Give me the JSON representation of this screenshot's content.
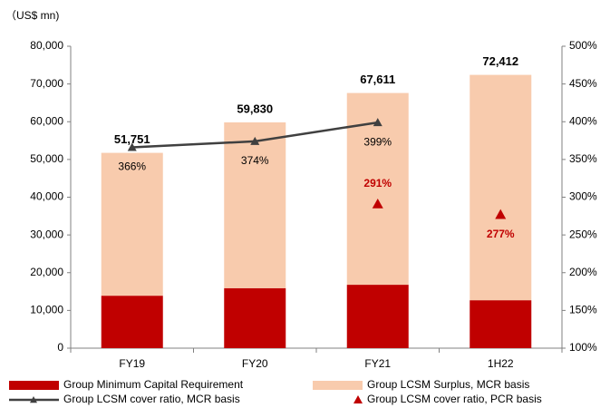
{
  "chart_data": {
    "type": "bar",
    "unit_label": "（US$ mn)",
    "categories": [
      "FY19",
      "FY20",
      "FY21",
      "1H22"
    ],
    "series": [
      {
        "name": "Group Minimum Capital Requirement",
        "type": "bar",
        "color": "#c00000",
        "values": [
          13900,
          15900,
          16800,
          12700
        ]
      },
      {
        "name": "Group LCSM Surplus, MCR basis",
        "type": "bar",
        "color": "#f8cbad",
        "values": [
          37851,
          43930,
          50811,
          59712
        ]
      },
      {
        "name": "Group LCSM cover ratio, MCR basis",
        "type": "line",
        "axis": "y2",
        "color": "#404040",
        "values": [
          366,
          374,
          399,
          null
        ],
        "value_labels": [
          "366%",
          "374%",
          "399%",
          null
        ]
      },
      {
        "name": "Group LCSM cover ratio, PCR basis",
        "type": "scatter",
        "axis": "y2",
        "color": "#c00000",
        "values": [
          null,
          null,
          291,
          277
        ],
        "value_labels": [
          null,
          null,
          "291%",
          "277%"
        ]
      }
    ],
    "totals": [
      51751,
      59830,
      67611,
      72412
    ],
    "total_labels": [
      "51,751",
      "59,830",
      "67,611",
      "72,412"
    ],
    "ylim": [
      0,
      80000
    ],
    "yticks": [
      0,
      {
        "value": 10000,
        "label": "10,000"
      },
      {
        "value": 20000,
        "label": "20,000"
      },
      {
        "value": 30000,
        "label": "30,000"
      },
      {
        "value": 40000,
        "label": "40,000"
      },
      {
        "value": 50000,
        "label": "50,000"
      },
      {
        "value": 60000,
        "label": "60,000"
      },
      {
        "value": 70000,
        "label": "70,000"
      },
      {
        "value": 80000,
        "label": "80,000"
      }
    ],
    "y2lim": [
      100,
      500
    ],
    "y2ticks": [
      {
        "value": 100,
        "label": "100%"
      },
      {
        "value": 150,
        "label": "150%"
      },
      {
        "value": 200,
        "label": "200%"
      },
      {
        "value": 250,
        "label": "250%"
      },
      {
        "value": 300,
        "label": "300%"
      },
      {
        "value": 350,
        "label": "350%"
      },
      {
        "value": 400,
        "label": "400%"
      },
      {
        "value": 450,
        "label": "450%"
      },
      {
        "value": 500,
        "label": "500%"
      }
    ]
  }
}
